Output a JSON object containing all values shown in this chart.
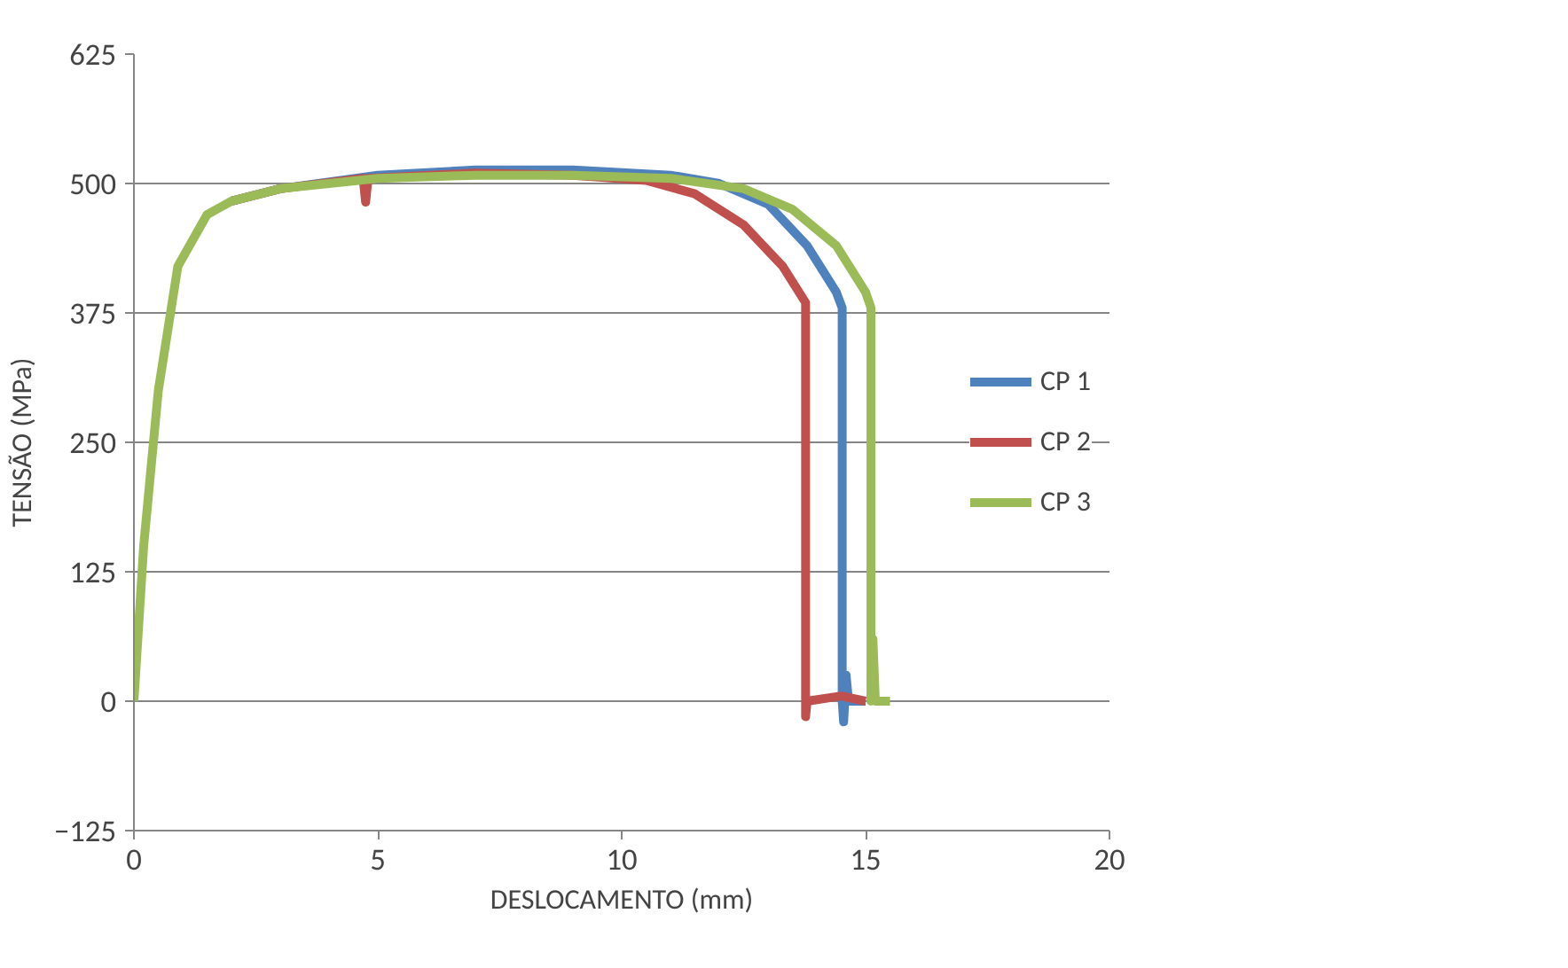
{
  "chart_data": {
    "type": "line",
    "xlabel": "DESLOCAMENTO (mm)",
    "ylabel": "TENSÃO (MPa)",
    "xlim": [
      0,
      20
    ],
    "xticks": [
      0,
      5,
      10,
      15,
      20
    ],
    "ylim": [
      -125,
      625
    ],
    "yticks": [
      -125,
      0,
      125,
      250,
      375,
      500,
      625
    ],
    "grid": "y",
    "legend": "right",
    "marker": "none",
    "line_style": "solid",
    "series": [
      {
        "name": "CP 1",
        "color": "#4f81bd",
        "x": [
          2,
          3,
          5,
          7,
          9,
          11,
          12,
          13,
          13.8,
          14.4,
          14.52,
          14.52,
          14.55,
          14.6,
          14.65,
          15
        ],
        "values": [
          483,
          495,
          508,
          513,
          513,
          508,
          500,
          480,
          440,
          395,
          380,
          0,
          -20,
          25,
          0,
          0
        ]
      },
      {
        "name": "CP 2",
        "color": "#c0504d",
        "x": [
          2,
          3,
          4.7,
          4.75,
          4.8,
          7,
          9,
          10.5,
          11.5,
          12.5,
          13.3,
          13.77,
          13.77,
          13.8,
          14.5,
          15
        ],
        "values": [
          483,
          495,
          505,
          482,
          505,
          510,
          508,
          503,
          490,
          460,
          420,
          385,
          -15,
          0,
          5,
          0
        ]
      },
      {
        "name": "CP 3",
        "color": "#9bbb59",
        "x": [
          0,
          0.2,
          0.5,
          0.9,
          1.5,
          2,
          3,
          5,
          7,
          9,
          11,
          12.5,
          13.5,
          14.4,
          15,
          15.11,
          15.11,
          15.15,
          15.2,
          15.5
        ],
        "values": [
          0,
          150,
          300,
          420,
          470,
          483,
          495,
          505,
          508,
          508,
          505,
          495,
          475,
          440,
          395,
          380,
          0,
          60,
          0,
          0
        ]
      }
    ]
  }
}
